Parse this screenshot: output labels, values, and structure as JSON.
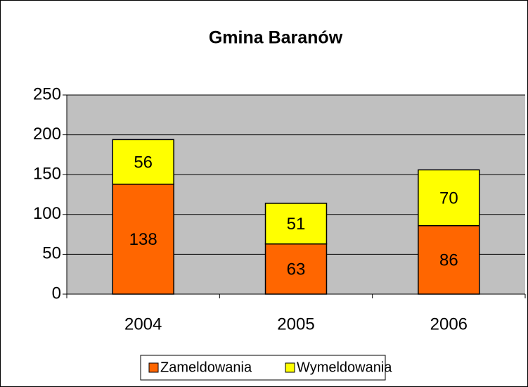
{
  "chart_data": {
    "type": "stacked_bar",
    "title": "Gmina Baranów",
    "categories": [
      "2004",
      "2005",
      "2006"
    ],
    "series": [
      {
        "name": "Zameldowania",
        "color": "#ff6600",
        "values": [
          138,
          63,
          86
        ]
      },
      {
        "name": "Wymeldowania",
        "color": "#ffff00",
        "values": [
          56,
          51,
          70
        ]
      }
    ],
    "ylim": [
      0,
      250
    ],
    "yticks": [
      0,
      50,
      100,
      150,
      200,
      250
    ],
    "grid": true,
    "legend": "bottom"
  }
}
